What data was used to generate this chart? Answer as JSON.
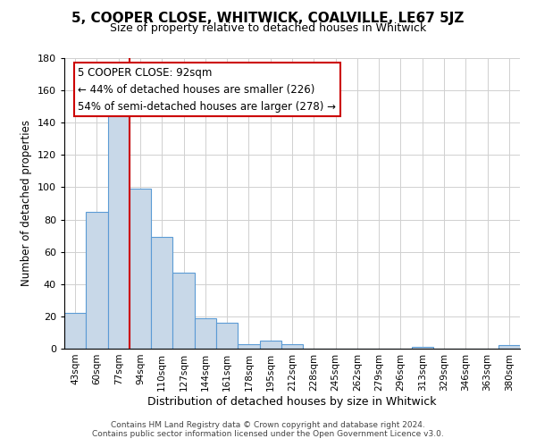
{
  "title": "5, COOPER CLOSE, WHITWICK, COALVILLE, LE67 5JZ",
  "subtitle": "Size of property relative to detached houses in Whitwick",
  "xlabel": "Distribution of detached houses by size in Whitwick",
  "ylabel": "Number of detached properties",
  "bar_labels": [
    "43sqm",
    "60sqm",
    "77sqm",
    "94sqm",
    "110sqm",
    "127sqm",
    "144sqm",
    "161sqm",
    "178sqm",
    "195sqm",
    "212sqm",
    "228sqm",
    "245sqm",
    "262sqm",
    "279sqm",
    "296sqm",
    "313sqm",
    "329sqm",
    "346sqm",
    "363sqm",
    "380sqm"
  ],
  "bar_values": [
    22,
    85,
    145,
    99,
    69,
    47,
    19,
    16,
    3,
    5,
    3,
    0,
    0,
    0,
    0,
    0,
    1,
    0,
    0,
    0,
    2
  ],
  "bar_color": "#c8d8e8",
  "bar_edge_color": "#5b9bd5",
  "vline_x": 3,
  "vline_color": "#cc0000",
  "ylim": [
    0,
    180
  ],
  "yticks": [
    0,
    20,
    40,
    60,
    80,
    100,
    120,
    140,
    160,
    180
  ],
  "annotation_title": "5 COOPER CLOSE: 92sqm",
  "annotation_line1": "← 44% of detached houses are smaller (226)",
  "annotation_line2": "54% of semi-detached houses are larger (278) →",
  "annotation_box_color": "#ffffff",
  "annotation_box_edge": "#cc0000",
  "footer_line1": "Contains HM Land Registry data © Crown copyright and database right 2024.",
  "footer_line2": "Contains public sector information licensed under the Open Government Licence v3.0.",
  "background_color": "#ffffff",
  "grid_color": "#d0d0d0"
}
